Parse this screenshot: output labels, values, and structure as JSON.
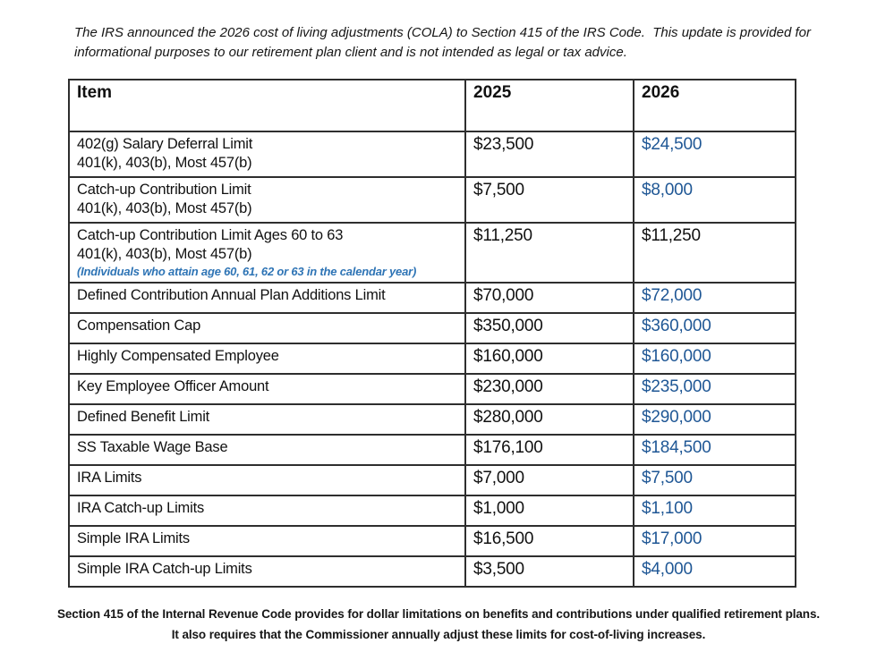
{
  "intro": "The IRS announced the 2026 cost of living adjustments (COLA) to Section 415 of the IRS Code.  This update is provided for informational purposes to our retirement plan client and is not intended as legal or tax advice.",
  "table": {
    "headers": {
      "item": "Item",
      "y2025": "2025",
      "y2026": "2026"
    },
    "rows": [
      {
        "item": "402(g) Salary Deferral Limit",
        "sub": "401(k), 403(b), Most 457(b)",
        "note": null,
        "v2025": "$23,500",
        "v2026": "$24,500",
        "v2026_blue": true,
        "lines": 2
      },
      {
        "item": "Catch-up Contribution Limit",
        "sub": "401(k), 403(b), Most 457(b)",
        "note": null,
        "v2025": "$7,500",
        "v2026": "$8,000",
        "v2026_blue": true,
        "lines": 2
      },
      {
        "item": "Catch-up Contribution Limit Ages 60 to 63",
        "sub": "401(k), 403(b), Most 457(b)",
        "note": "(Individuals who attain age 60, 61, 62 or 63 in the calendar year)",
        "v2025": "$11,250",
        "v2026": "$11,250",
        "v2026_blue": false,
        "lines": 3
      },
      {
        "item": "Defined Contribution Annual Plan Additions Limit",
        "sub": null,
        "note": null,
        "v2025": "$70,000",
        "v2026": "$72,000",
        "v2026_blue": true,
        "lines": 1
      },
      {
        "item": "Compensation Cap",
        "sub": null,
        "note": null,
        "v2025": "$350,000",
        "v2026": "$360,000",
        "v2026_blue": true,
        "lines": 1
      },
      {
        "item": "Highly Compensated Employee",
        "sub": null,
        "note": null,
        "v2025": "$160,000",
        "v2026": "$160,000",
        "v2026_blue": true,
        "lines": 1
      },
      {
        "item": "Key Employee Officer Amount",
        "sub": null,
        "note": null,
        "v2025": "$230,000",
        "v2026": "$235,000",
        "v2026_blue": true,
        "lines": 1
      },
      {
        "item": "Defined Benefit Limit",
        "sub": null,
        "note": null,
        "v2025": "$280,000",
        "v2026": "$290,000",
        "v2026_blue": true,
        "lines": 1
      },
      {
        "item": "SS Taxable Wage Base",
        "sub": null,
        "note": null,
        "v2025": "$176,100",
        "v2026": "$184,500",
        "v2026_blue": true,
        "lines": 1
      },
      {
        "item": "IRA Limits",
        "sub": null,
        "note": null,
        "v2025": "$7,000",
        "v2026": "$7,500",
        "v2026_blue": true,
        "lines": 1
      },
      {
        "item": "IRA Catch-up Limits",
        "sub": null,
        "note": null,
        "v2025": "$1,000",
        "v2026": "$1,100",
        "v2026_blue": true,
        "lines": 1
      },
      {
        "item": "Simple IRA Limits",
        "sub": null,
        "note": null,
        "v2025": "$16,500",
        "v2026": "$17,000",
        "v2026_blue": true,
        "lines": 1
      },
      {
        "item": "Simple IRA Catch-up Limits",
        "sub": null,
        "note": null,
        "v2025": "$3,500",
        "v2026": "$4,000",
        "v2026_blue": true,
        "lines": 1
      }
    ]
  },
  "footer": {
    "line1": "Section 415 of the Internal Revenue Code provides for dollar limitations on benefits and contributions under qualified retirement plans.",
    "line2": "It also requires that the Commissioner annually adjust these limits for cost-of-living increases."
  },
  "colors": {
    "header_2026_blue": "#1f4e79",
    "value_blue": "#1f5795",
    "note_blue": "#2e74b5"
  }
}
